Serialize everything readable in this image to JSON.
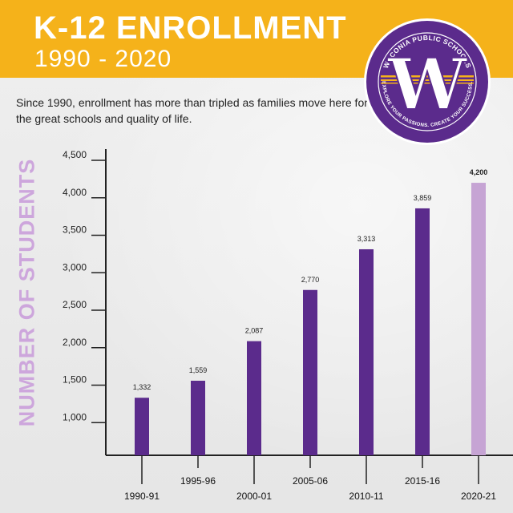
{
  "header": {
    "title": "K-12 ENROLLMENT",
    "subtitle": "1990 - 2020",
    "banner_color": "#f5b21a"
  },
  "intro_text": "Since 1990, enrollment has more than tripled as families move here for the great schools and quality of life.",
  "logo": {
    "org_name": "WACONIA PUBLIC SCHOOLS",
    "tagline": "EXPLORE YOUR PASSIONS. CREATE YOUR SUCCESS.",
    "letter": "W",
    "colors": {
      "purple": "#5b2b8c",
      "gold": "#f5b21a"
    }
  },
  "chart_data": {
    "type": "bar",
    "title": "K-12 ENROLLMENT",
    "subtitle": "1990 - 2020",
    "ylabel": "NUMBER OF STUDENTS",
    "xlabel": "",
    "categories": [
      "1990-91",
      "1995-96",
      "2000-01",
      "2005-06",
      "2010-11",
      "2015-16",
      "2020-21"
    ],
    "values": [
      1332,
      1559,
      2087,
      2770,
      3313,
      3859,
      4200
    ],
    "value_labels": [
      "1,332",
      "1,559",
      "2,087",
      "2,770",
      "3,313",
      "3,859",
      "4,200"
    ],
    "ylim": [
      500,
      4500
    ],
    "yticks": [
      1000,
      1500,
      2000,
      2500,
      3000,
      3500,
      4000,
      4500
    ],
    "ytick_labels": [
      "1,000",
      "1,500",
      "2,000",
      "2,500",
      "3,000",
      "3,500",
      "4,000",
      "4,500"
    ],
    "grid": false,
    "legend": "none",
    "colors": {
      "bar": "#5b2b8c",
      "highlight_bar": "#c6a4d4",
      "ylabel": "#cda6dc"
    },
    "highlight_index": 6
  }
}
